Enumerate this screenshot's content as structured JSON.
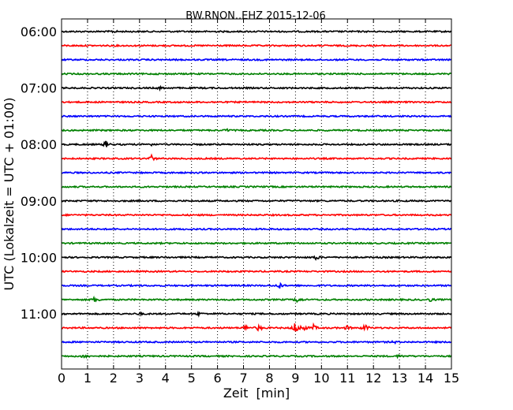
{
  "chart_data": {
    "type": "line",
    "subtype": "helicorder",
    "title": "BW.RNON..EHZ 2015-12-06",
    "xlabel": "Zeit  [min]",
    "ylabel": "UTC (Lokalzeit = UTC + 01:00)",
    "xlim": [
      0,
      15
    ],
    "x_ticks": [
      "0",
      "1",
      "2",
      "3",
      "4",
      "5",
      "6",
      "7",
      "8",
      "9",
      "10",
      "11",
      "12",
      "13",
      "14",
      "15"
    ],
    "y_tick_labels": [
      "06:00",
      "07:00",
      "08:00",
      "09:00",
      "10:00",
      "11:00"
    ],
    "grid": "vertical dotted",
    "line_minutes": 15,
    "trace_colors": [
      "#000000",
      "#ff0000",
      "#0000ff",
      "#008000"
    ],
    "traces": [
      {
        "start": "06:00",
        "events": [
          {
            "minute": 2.0,
            "amp": 0.3
          }
        ]
      },
      {
        "start": "06:15",
        "events": []
      },
      {
        "start": "06:30",
        "events": []
      },
      {
        "start": "06:45",
        "events": []
      },
      {
        "start": "07:00",
        "events": [
          {
            "minute": 3.8,
            "amp": 0.3
          }
        ]
      },
      {
        "start": "07:15",
        "events": []
      },
      {
        "start": "07:30",
        "events": []
      },
      {
        "start": "07:45",
        "events": [
          {
            "minute": 6.4,
            "amp": 0.3
          }
        ]
      },
      {
        "start": "08:00",
        "events": [
          {
            "minute": 1.7,
            "amp": 0.8
          },
          {
            "minute": 3.4,
            "amp": 0.4
          }
        ]
      },
      {
        "start": "08:15",
        "events": [
          {
            "minute": 3.45,
            "amp": 0.9
          }
        ]
      },
      {
        "start": "08:30",
        "events": []
      },
      {
        "start": "08:45",
        "events": []
      },
      {
        "start": "09:00",
        "events": []
      },
      {
        "start": "09:15",
        "events": []
      },
      {
        "start": "09:30",
        "events": []
      },
      {
        "start": "09:45",
        "events": []
      },
      {
        "start": "10:00",
        "events": [
          {
            "minute": 9.8,
            "amp": 0.7
          }
        ]
      },
      {
        "start": "10:15",
        "events": []
      },
      {
        "start": "10:30",
        "events": [
          {
            "minute": 8.4,
            "amp": 0.7
          }
        ]
      },
      {
        "start": "10:45",
        "events": [
          {
            "minute": 1.3,
            "amp": 0.9
          },
          {
            "minute": 9.1,
            "amp": 0.9
          },
          {
            "minute": 14.2,
            "amp": 0.4
          }
        ]
      },
      {
        "start": "11:00",
        "events": [
          {
            "minute": 3.0,
            "amp": 0.3
          },
          {
            "minute": 5.3,
            "amp": 0.4
          }
        ]
      },
      {
        "start": "11:15",
        "events": [
          {
            "minute": 7.1,
            "amp": 0.8
          },
          {
            "minute": 7.6,
            "amp": 0.9
          },
          {
            "minute": 9.0,
            "amp": 1.6
          },
          {
            "minute": 9.3,
            "amp": 1.0
          },
          {
            "minute": 9.7,
            "amp": 0.8
          },
          {
            "minute": 11.0,
            "amp": 0.6
          },
          {
            "minute": 11.7,
            "amp": 1.0
          }
        ]
      },
      {
        "start": "11:30",
        "events": [
          {
            "minute": 12.8,
            "amp": 0.3
          }
        ]
      },
      {
        "start": "11:45",
        "events": [
          {
            "minute": 0.9,
            "amp": 0.7
          },
          {
            "minute": 13.0,
            "amp": 0.4
          }
        ]
      }
    ]
  }
}
